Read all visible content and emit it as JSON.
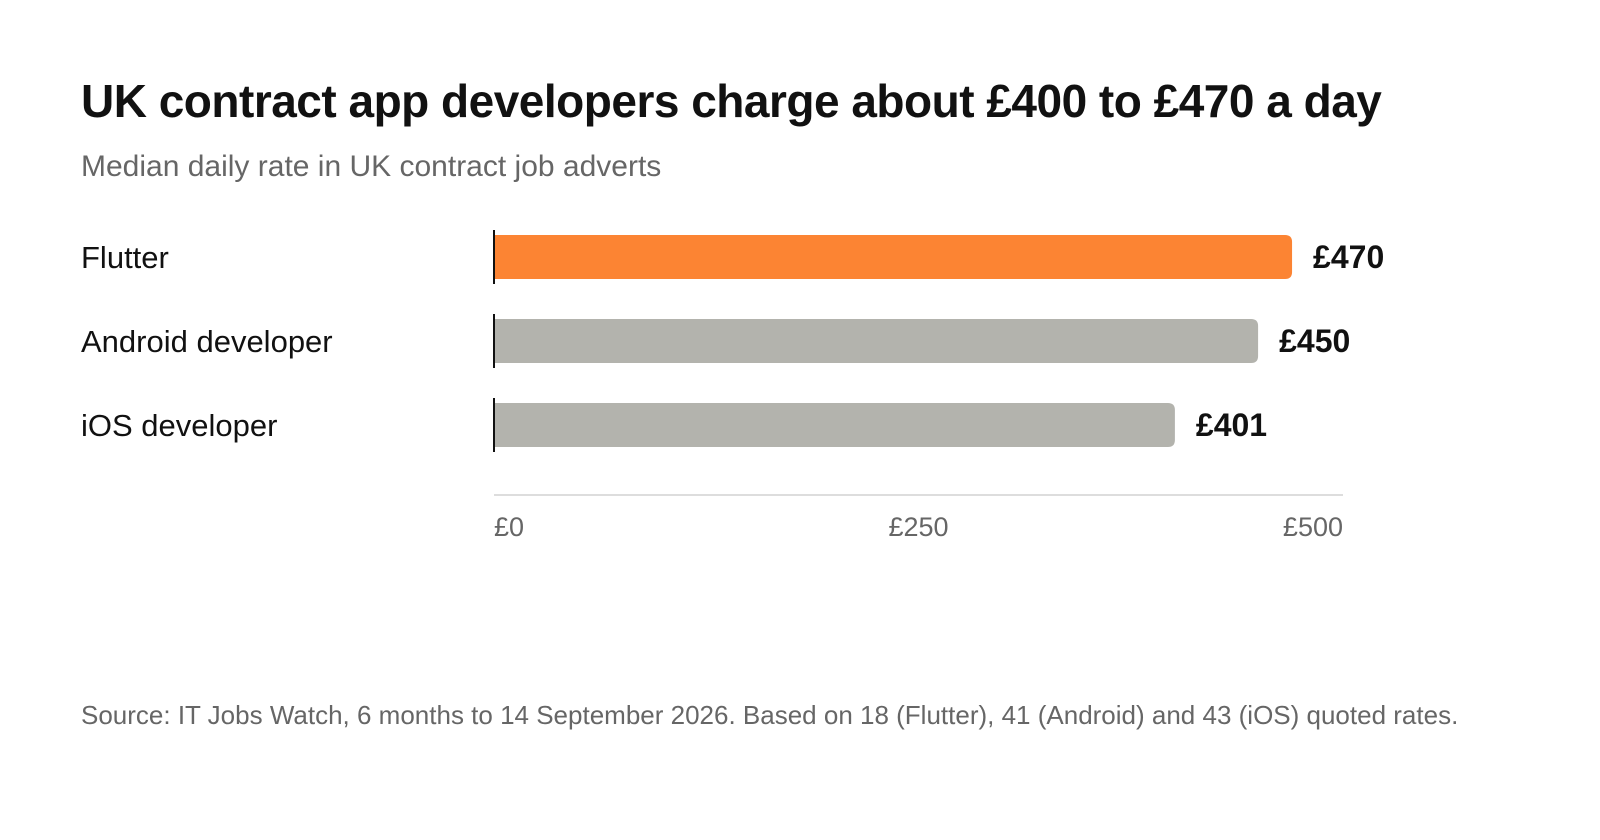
{
  "header": {
    "title": "UK contract app developers charge about £400 to £470 a day",
    "subtitle": "Median daily rate in UK contract job adverts"
  },
  "footer": {
    "source": "Source: IT Jobs Watch, 6 months to 14 September 2026. Based on 18 (Flutter), 41 (Android) and 43 (iOS) quoted rates."
  },
  "chart_data": {
    "type": "bar",
    "orientation": "horizontal",
    "categories": [
      "Flutter",
      "Android developer",
      "iOS developer"
    ],
    "values": [
      470,
      450,
      401
    ],
    "value_labels": [
      "£470",
      "£450",
      "£401"
    ],
    "xlim": [
      0,
      500
    ],
    "xticks": [
      0,
      250,
      500
    ],
    "xtick_labels": [
      "£0",
      "£250",
      "£500"
    ],
    "grid": false,
    "colors": {
      "highlight": "#FC8433",
      "default": "#B3B3AD",
      "baseline": "#111111",
      "axis": "#DDDDDD",
      "tick_label": "#666666"
    },
    "highlight_index": 0
  }
}
